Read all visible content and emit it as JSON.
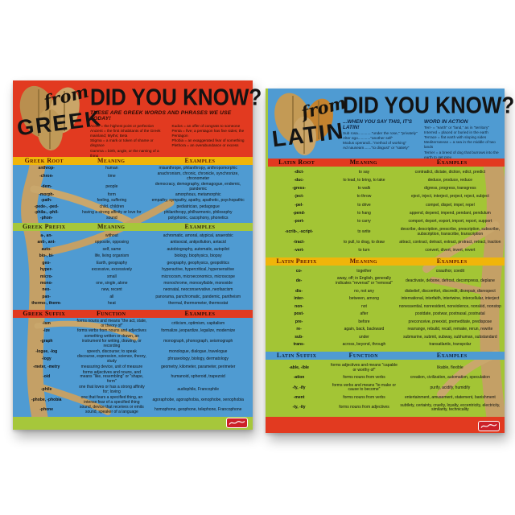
{
  "colors": {
    "red": "#e23a20",
    "blue": "#4f9bd2",
    "lime": "#a6c73b",
    "lime2": "#a3c535",
    "yellow": "#f0b50a",
    "tan": "#c4a066"
  },
  "posters": [
    {
      "from_word": "from",
      "language": "GREEK",
      "title": "DID YOU KNOW?",
      "subtitle": "THESE ARE GREEK WORDS AND PHRASES WE USE TODAY!",
      "intro_left": [
        "Acme = the highest point or perfection",
        "Ancient = the first inhabitants of the Greek mainland; Myths; Beta",
        "Stigma = a mark or token of shame or disgrace",
        "Gamma = birth, angle, or the naming of a thing"
      ],
      "intro_right": [
        "Kudos = an offer of congrats to someone",
        "Penta = five; a pentagon has five sides; the Pentagon",
        "Phobia = an exaggerated fear of something",
        "Plethora = an overabundance or excess"
      ],
      "sections": [
        {
          "columns": [
            "Greek Root",
            "Meaning",
            "Examples"
          ],
          "rows": [
            [
              "anthrop-",
              "human",
              "misanthrope, philanthropy, anthropomorphic"
            ],
            [
              "-chron-",
              "time",
              "anachronism, chronic, chronicle, synchronize, chronometer"
            ],
            [
              "-dem-",
              "people",
              "democracy, demography, demagogue, endemic, pandemic"
            ],
            [
              "-morph-",
              "form",
              "amorphous, metamorphic"
            ],
            [
              "-path-",
              "feeling, suffering",
              "empathy, sympathy, apathy, apathetic, psychopathic"
            ],
            [
              "-pede-, -ped-",
              "child, children",
              "pediatrician, pedagogue"
            ],
            [
              "-phila-, -phil-",
              "having a strong affinity or love for",
              "philanthropy, philharmonic, philosophy"
            ],
            [
              "-phon-",
              "sound",
              "polyphonic, cacophony, phonetics"
            ]
          ]
        },
        {
          "columns": [
            "Greek Prefix",
            "Meaning",
            "Examples"
          ],
          "rows": [
            [
              "a-, an-",
              "without",
              "achromatic, amoral, atypical, anaerobic"
            ],
            [
              "anti-, ant-",
              "opposite, opposing",
              "antisocial, antipollution, antacid"
            ],
            [
              "auto-",
              "self, same",
              "autobiography, automatic, autopilot"
            ],
            [
              "bio-, bi-",
              "life, living organism",
              "biology, biophysics, biopsy"
            ],
            [
              "geo-",
              "Earth, geography",
              "geography, geophysics, geopolitics"
            ],
            [
              "hyper-",
              "excessive, excessively",
              "hyperactive, hypercritical, hypersensitive"
            ],
            [
              "micro-",
              "small",
              "microcosm, microeconomics, microscope"
            ],
            [
              "mono-",
              "one, single, alone",
              "monochrome, monosyllable, monoxide"
            ],
            [
              "neo-",
              "new, recent",
              "neonatal, neoconservative, neofascism"
            ],
            [
              "pan-",
              "all",
              "panorama, panchromatic, pandemic, pantheism"
            ],
            [
              "thermo-, therm-",
              "heat",
              "thermal, thermometer, thermostat"
            ]
          ]
        },
        {
          "columns": [
            "Greek Suffix",
            "Function",
            "Examples"
          ],
          "rows": [
            [
              "-ism",
              "forms nouns and means \"the act, state, or theory of\"",
              "criticism, optimism, capitalism"
            ],
            [
              "-ize",
              "forms verbs from nouns and adjectives",
              "formalize, jeopardize, legalize, modernize"
            ],
            [
              "-graph",
              "something written or drawn, an instrument for writing, drawing, or recording",
              "monograph, phonograph, seismograph"
            ],
            [
              "-logue, -log",
              "speech, discourse; to speak",
              "monologue, dialogue, travelogue"
            ],
            [
              "-logy",
              "discourse, expression, science, theory, study",
              "phraseology, biology, dermatology"
            ],
            [
              "-meter, -metry",
              "measuring device, unit of measure",
              "geometry, kilometer, parameter, perimeter"
            ],
            [
              "-oid",
              "forms adjectives and nouns, and means \"like, resembling\" or \"shape, form\"",
              "humanoid, spheroid, trapezoid"
            ],
            [
              "-phile",
              "one that loves or has a strong affinity for; loving",
              "audiophile, Francophile"
            ],
            [
              "-phobe, -phobia",
              "one that fears a specified thing, an intense fear of a specified thing",
              "agoraphobe, agoraphobia, xenophobe, xenophobia"
            ],
            [
              "-phone",
              "sound, device that receives or emits sound, speaker of a language",
              "homophone, geophone, telephone, Francophone"
            ]
          ]
        }
      ]
    },
    {
      "from_word": "from",
      "language": "LATIN",
      "title": "DID YOU KNOW?",
      "intro_left_heading": "...WHEN YOU SAY THIS, IT'S LATIN!",
      "intro_right_heading": "WORD IN ACTION",
      "intro_left": [
        "Sub rosa.............\"under the rose,\" \"privately\"",
        "Alter ego............\"another self\"",
        "Modus operandi...\"method of working\"",
        "Ad nauseam.......\"to disgust\" or \"satiety\""
      ],
      "intro_right": [
        "Terr- = \"earth\" or \"land,\" as in \"territory\"",
        "Interred = placed or buried in the earth",
        "Terrace = flat earth with sloping sides",
        "Mediterranean = a sea in the middle of two lands",
        "Terrier = a breed of dog that burrows into the earth to get prey"
      ],
      "sections": [
        {
          "columns": [
            "Latin Root",
            "Meaning",
            "Examples"
          ],
          "rows": [
            [
              "-dict-",
              "to say",
              "contradict, dictate, diction, edict, predict"
            ],
            [
              "-duc-",
              "to lead, to bring, to take",
              "deduce, produce, reduce"
            ],
            [
              "-gress-",
              "to walk",
              "digress, progress, transgress"
            ],
            [
              "-ject-",
              "to throw",
              "eject, inject, interject, project, reject, subject"
            ],
            [
              "-pel-",
              "to drive",
              "compel, dispel, impel, repel"
            ],
            [
              "-pend-",
              "to hang",
              "append, depend, impend, pendant, pendulum"
            ],
            [
              "-port-",
              "to carry",
              "comport, deport, export, import, report, support"
            ],
            [
              "-scrib-, -script-",
              "to write",
              "describe, description, prescribe, prescription, subscribe, subscription, transcribe, transcription"
            ],
            [
              "-tract-",
              "to pull, to drag, to draw",
              "attract, contract, detract, extract, protract, retract, traction"
            ],
            [
              "-vert-",
              "to turn",
              "convert, divert, invert, revert"
            ]
          ]
        },
        {
          "columns": [
            "Latin Prefix",
            "Meaning",
            "Examples"
          ],
          "rows": [
            [
              "co-",
              "together",
              "coauthor, coedit"
            ],
            [
              "de-",
              "away, off; in English, generally indicates \"reversal\" or \"removal\"",
              "deactivate, debone, defrost, decompress, deplane"
            ],
            [
              "dis-",
              "no, not any",
              "disbelief, discomfort, discredit, disrepair, disrespect"
            ],
            [
              "inter-",
              "between, among",
              "international, interfaith, intertwine, intercellular, interject"
            ],
            [
              "non-",
              "not",
              "nonessential, nonresident, nonviolence, nonskid, nonstop"
            ],
            [
              "post-",
              "after",
              "postdate, postwar, postnasal, postnatal"
            ],
            [
              "pre-",
              "before",
              "preconceive, preexist, premeditate, predispose"
            ],
            [
              "re-",
              "again, back, backward",
              "rearrange, rebuild, recall, remake, rerun, rewrite"
            ],
            [
              "sub-",
              "under",
              "submarine, submit, subway, subhuman, substandard"
            ],
            [
              "trans-",
              "across, beyond, through",
              "transatlantic, transpolar"
            ]
          ]
        },
        {
          "columns": [
            "Latin Suffix",
            "Function",
            "Examples"
          ],
          "rows": [
            [
              "-able, -ible",
              "forms adjectives and means \"capable or worthy of\"",
              "likable, flexible"
            ],
            [
              "-ation",
              "forms nouns from verbs",
              "creation, civilization, automation, speculation"
            ],
            [
              "-fy, -ify",
              "forms verbs and means \"to make or cause to become\"",
              "purify, acidify, humidify"
            ],
            [
              "-ment",
              "forms nouns from verbs",
              "entertainment, amusement, statement, banishment"
            ],
            [
              "-ty, -ity",
              "forms nouns from adjectives",
              "subtlety, certainty, cruelty, loyalty, eccentricity, electricity, similarity, technicality"
            ]
          ]
        }
      ]
    }
  ]
}
